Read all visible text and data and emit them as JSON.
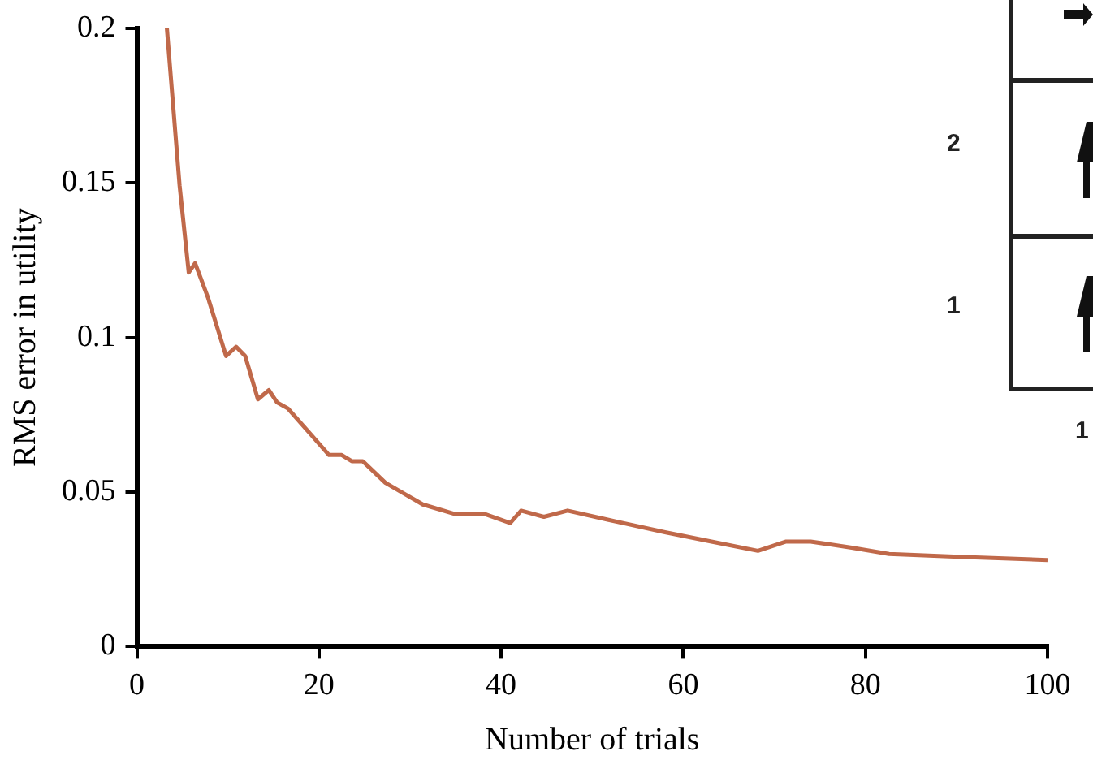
{
  "chart_data": {
    "type": "line",
    "xlabel": "Number of trials",
    "ylabel": "RMS error in utility",
    "x": [
      3.3,
      4.7,
      5.7,
      6.4,
      7.8,
      9.8,
      10.9,
      11.9,
      13.3,
      14.5,
      15.4,
      16.6,
      19,
      21.1,
      22.5,
      23.6,
      24.8,
      27.3,
      31.4,
      34.8,
      38.1,
      41,
      42.2,
      44.7,
      47.3,
      51.8,
      58,
      63.1,
      68.2,
      71.3,
      74,
      78.5,
      82.6,
      90.8,
      100
    ],
    "series": [
      {
        "color": "#c0694a",
        "values": [
          0.2,
          0.149,
          0.121,
          0.124,
          0.113,
          0.094,
          0.097,
          0.094,
          0.08,
          0.083,
          0.079,
          0.077,
          0.069,
          0.062,
          0.062,
          0.06,
          0.06,
          0.053,
          0.046,
          0.043,
          0.043,
          0.04,
          0.044,
          0.042,
          0.044,
          0.041,
          0.037,
          0.034,
          0.031,
          0.034,
          0.034,
          0.032,
          0.03,
          0.029,
          0.028
        ]
      }
    ],
    "xlim": [
      0,
      100
    ],
    "xticks": [
      0,
      20,
      40,
      60,
      80,
      100
    ],
    "ylim": [
      0,
      0.2
    ],
    "yticks": [
      0,
      0.05,
      0.1,
      0.15,
      0.2
    ],
    "grid": false,
    "legend": false,
    "marker": "none",
    "line_style": "solid",
    "annotations": [
      "2",
      "1",
      "1"
    ]
  }
}
